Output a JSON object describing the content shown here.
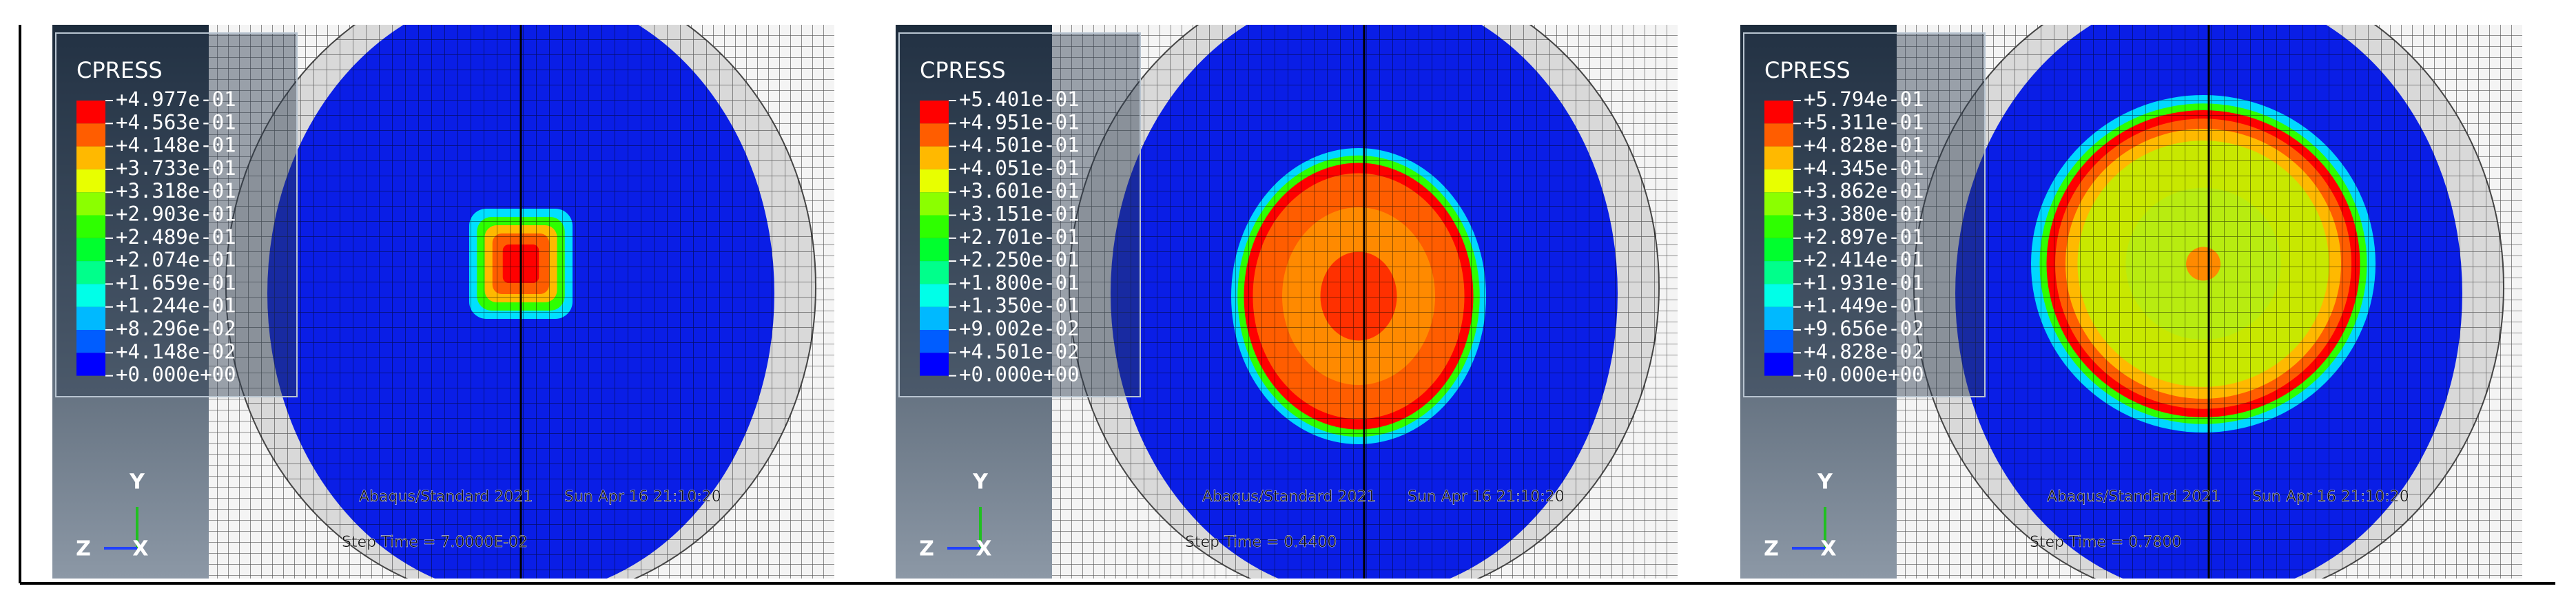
{
  "panels": [
    {
      "title": "CPRESS",
      "legend": [
        "+4.977e-01",
        "+4.563e-01",
        "+4.148e-01",
        "+3.733e-01",
        "+3.318e-01",
        "+2.903e-01",
        "+2.489e-01",
        "+2.074e-01",
        "+1.659e-01",
        "+1.244e-01",
        "+8.296e-02",
        "+4.148e-02",
        "+0.000e+00"
      ],
      "info": [
        "Abaqus/Standard 2021",
        "Sun Apr 16 21:10:20",
        "Step Time = 7.0000E-02"
      ],
      "axes": [
        "Y",
        "Z",
        "X"
      ]
    },
    {
      "title": "CPRESS",
      "legend": [
        "+5.401e-01",
        "+4.951e-01",
        "+4.501e-01",
        "+4.051e-01",
        "+3.601e-01",
        "+3.151e-01",
        "+2.701e-01",
        "+2.250e-01",
        "+1.800e-01",
        "+1.350e-01",
        "+9.002e-02",
        "+4.501e-02",
        "+0.000e+00"
      ],
      "info": [
        "Abaqus/Standard 2021",
        "Sun Apr 16 21:10:20",
        "Step Time = 0.4400"
      ],
      "axes": [
        "Y",
        "Z",
        "X"
      ]
    },
    {
      "title": "CPRESS",
      "legend": [
        "+5.794e-01",
        "+5.311e-01",
        "+4.828e-01",
        "+4.345e-01",
        "+3.862e-01",
        "+3.380e-01",
        "+2.897e-01",
        "+2.414e-01",
        "+1.931e-01",
        "+1.449e-01",
        "+9.656e-02",
        "+4.828e-02",
        "+0.000e+00"
      ],
      "info": [
        "Abaqus/Standard 2021",
        "Sun Apr 16 21:10:20",
        "Step Time = 0.7800"
      ],
      "axes": [
        "Y",
        "Z",
        "X"
      ]
    }
  ],
  "legend_colors": [
    "#ff0000",
    "#ff5d00",
    "#ffb900",
    "#e8ff00",
    "#8bff00",
    "#2eff00",
    "#00ff2e",
    "#00ff8b",
    "#00ffe8",
    "#00b9ff",
    "#005dff",
    "#0000ff"
  ]
}
